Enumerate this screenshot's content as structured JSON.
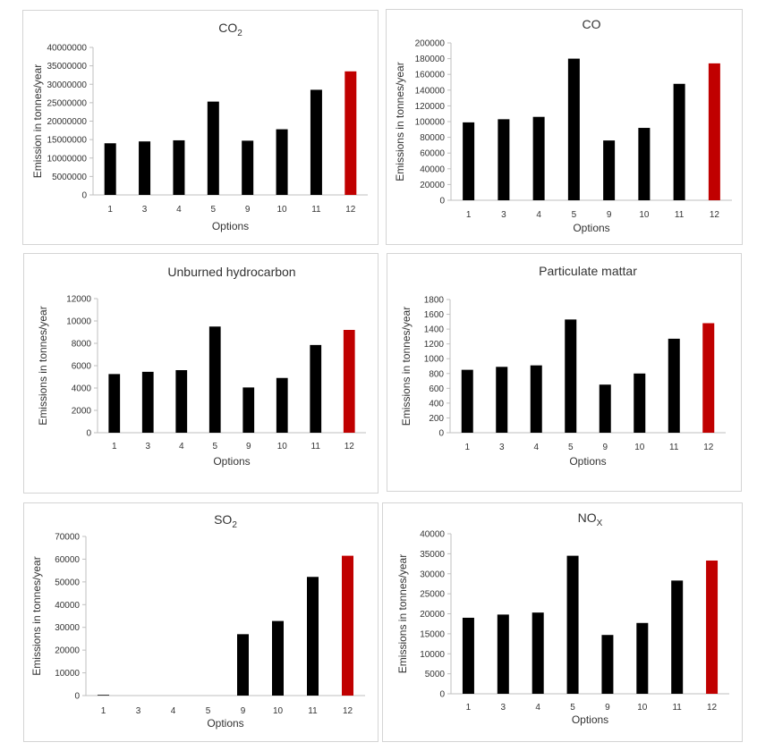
{
  "chart_data": [
    {
      "type": "bar",
      "title": "CO",
      "title_sub": "2",
      "xlabel": "Options",
      "ylabel": "Emission in tonnes/year",
      "categories": [
        "1",
        "3",
        "4",
        "5",
        "9",
        "10",
        "11",
        "12"
      ],
      "values": [
        14000000,
        14500000,
        14800000,
        25300000,
        14700000,
        17800000,
        28500000,
        33500000
      ],
      "ylim": [
        0,
        40000000
      ],
      "yticks": [
        "0",
        "5000000",
        "10000000",
        "15000000",
        "20000000",
        "25000000",
        "30000000",
        "35000000",
        "40000000"
      ],
      "highlight_index": 7,
      "bar_color": "#000000",
      "highlight_color": "#c00000"
    },
    {
      "type": "bar",
      "title": "CO",
      "title_sub": "",
      "xlabel": "Options",
      "ylabel": "Emissions in tonnes/year",
      "categories": [
        "1",
        "3",
        "4",
        "5",
        "9",
        "10",
        "11",
        "12"
      ],
      "values": [
        99000,
        103000,
        106000,
        180000,
        76000,
        92000,
        148000,
        174000
      ],
      "ylim": [
        0,
        200000
      ],
      "yticks": [
        "0",
        "20000",
        "40000",
        "60000",
        "80000",
        "100000",
        "120000",
        "140000",
        "160000",
        "180000",
        "200000"
      ],
      "highlight_index": 7,
      "bar_color": "#000000",
      "highlight_color": "#c00000"
    },
    {
      "type": "bar",
      "title": "Unburned hydrocarbon",
      "title_sub": "",
      "xlabel": "Options",
      "ylabel": "Emissions in tonnes/year",
      "categories": [
        "1",
        "3",
        "4",
        "5",
        "9",
        "10",
        "11",
        "12"
      ],
      "values": [
        5250,
        5450,
        5600,
        9500,
        4050,
        4900,
        7850,
        9200
      ],
      "ylim": [
        0,
        12000
      ],
      "yticks": [
        "0",
        "2000",
        "4000",
        "6000",
        "8000",
        "10000",
        "12000"
      ],
      "highlight_index": 7,
      "bar_color": "#000000",
      "highlight_color": "#c00000"
    },
    {
      "type": "bar",
      "title": "Particulate mattar",
      "title_sub": "",
      "xlabel": "Options",
      "ylabel": "Emissions in tonnes/year",
      "categories": [
        "1",
        "3",
        "4",
        "5",
        "9",
        "10",
        "11",
        "12"
      ],
      "values": [
        850,
        890,
        910,
        1530,
        650,
        800,
        1270,
        1480
      ],
      "ylim": [
        0,
        1800
      ],
      "yticks": [
        "0",
        "200",
        "400",
        "600",
        "800",
        "1000",
        "1200",
        "1400",
        "1600",
        "1800"
      ],
      "highlight_index": 7,
      "bar_color": "#000000",
      "highlight_color": "#c00000"
    },
    {
      "type": "bar",
      "title": "SO",
      "title_sub": "2",
      "xlabel": "Options",
      "ylabel": "Emissions in tonnes/year",
      "categories": [
        "1",
        "3",
        "4",
        "5",
        "9",
        "10",
        "11",
        "12"
      ],
      "values": [
        300,
        0,
        0,
        0,
        27000,
        32800,
        52200,
        61500
      ],
      "ylim": [
        0,
        70000
      ],
      "yticks": [
        "0",
        "10000",
        "20000",
        "30000",
        "40000",
        "50000",
        "60000",
        "70000"
      ],
      "highlight_index": 7,
      "bar_color": "#000000",
      "highlight_color": "#c00000"
    },
    {
      "type": "bar",
      "title": "NO",
      "title_sub": "X",
      "xlabel": "Options",
      "ylabel": "Emissions in tonnes/year",
      "categories": [
        "1",
        "3",
        "4",
        "5",
        "9",
        "10",
        "11",
        "12"
      ],
      "values": [
        19000,
        19800,
        20300,
        34500,
        14700,
        17700,
        28300,
        33300
      ],
      "ylim": [
        0,
        40000
      ],
      "yticks": [
        "0",
        "5000",
        "10000",
        "15000",
        "20000",
        "25000",
        "30000",
        "35000",
        "40000"
      ],
      "highlight_index": 7,
      "bar_color": "#000000",
      "highlight_color": "#c00000"
    }
  ]
}
